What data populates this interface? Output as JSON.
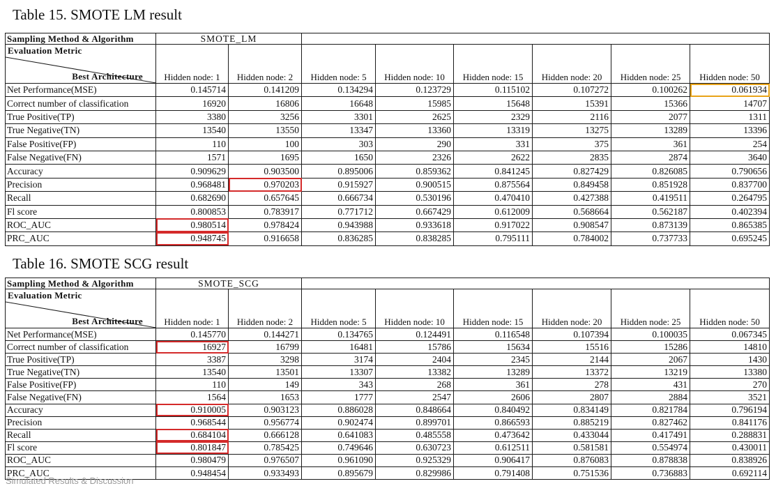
{
  "tables": [
    {
      "caption": "Table 15. SMOTE LM result",
      "sampling_label": "Sampling Method & Algorithm",
      "algorithm": "SMOTE_LM",
      "metric_label": "Evaluation Metric",
      "architecture_label": "Best Architecture",
      "columns": [
        "Hidden node: 1",
        "Hidden node: 2",
        "Hidden node: 5",
        "Hidden node: 10",
        "Hidden node: 15",
        "Hidden node: 20",
        "Hidden node: 25",
        "Hidden node: 50"
      ],
      "rows": [
        {
          "metric": "Net Performance(MSE)",
          "values": [
            "0.145714",
            "0.141209",
            "0.134294",
            "0.123729",
            "0.115102",
            "0.107272",
            "0.100262",
            "0.061934"
          ]
        },
        {
          "metric": "Correct number of classification",
          "values": [
            "16920",
            "16806",
            "16648",
            "15985",
            "15648",
            "15391",
            "15366",
            "14707"
          ]
        },
        {
          "metric": "True Positive(TP)",
          "values": [
            "3380",
            "3256",
            "3301",
            "2625",
            "2329",
            "2116",
            "2077",
            "1311"
          ]
        },
        {
          "metric": "True Negative(TN)",
          "values": [
            "13540",
            "13550",
            "13347",
            "13360",
            "13319",
            "13275",
            "13289",
            "13396"
          ]
        },
        {
          "metric": "False Positive(FP)",
          "values": [
            "110",
            "100",
            "303",
            "290",
            "331",
            "375",
            "361",
            "254"
          ]
        },
        {
          "metric": "False Negative(FN)",
          "values": [
            "1571",
            "1695",
            "1650",
            "2326",
            "2622",
            "2835",
            "2874",
            "3640"
          ]
        },
        {
          "metric": "Accuracy",
          "values": [
            "0.909629",
            "0.903500",
            "0.895006",
            "0.859362",
            "0.841245",
            "0.827429",
            "0.826085",
            "0.790656"
          ]
        },
        {
          "metric": "Precision",
          "values": [
            "0.968481",
            "0.970203",
            "0.915927",
            "0.900515",
            "0.875564",
            "0.849458",
            "0.851928",
            "0.837700"
          ]
        },
        {
          "metric": "Recall",
          "values": [
            "0.682690",
            "0.657645",
            "0.666734",
            "0.530196",
            "0.470410",
            "0.427388",
            "0.419511",
            "0.264795"
          ]
        },
        {
          "metric": "Fl score",
          "values": [
            "0.800853",
            "0.783917",
            "0.771712",
            "0.667429",
            "0.612009",
            "0.568664",
            "0.562187",
            "0.402394"
          ]
        },
        {
          "metric": "ROC_AUC",
          "values": [
            "0.980514",
            "0.978424",
            "0.943988",
            "0.933618",
            "0.917022",
            "0.908547",
            "0.873139",
            "0.865385"
          ]
        },
        {
          "metric": "PRC_AUC",
          "values": [
            "0.948745",
            "0.916658",
            "0.836285",
            "0.838285",
            "0.795111",
            "0.784002",
            "0.737733",
            "0.695245"
          ]
        }
      ],
      "highlights_color_red": "#d42a2a",
      "highlights_color_orange": "#e8a317"
    },
    {
      "caption": "Table 16. SMOTE SCG result",
      "sampling_label": "Sampling Method & Algorithm",
      "algorithm": "SMOTE_SCG",
      "metric_label": "Evaluation Metric",
      "architecture_label": "Best Architecture",
      "columns": [
        "Hidden node: 1",
        "Hidden node: 2",
        "Hidden node: 5",
        "Hidden node: 10",
        "Hidden node: 15",
        "Hidden node: 20",
        "Hidden node: 25",
        "Hidden node: 50"
      ],
      "rows": [
        {
          "metric": "Net Performance(MSE)",
          "values": [
            "0.145770",
            "0.144271",
            "0.134765",
            "0.124491",
            "0.116548",
            "0.107394",
            "0.100035",
            "0.067345"
          ]
        },
        {
          "metric": "Correct number of classification",
          "values": [
            "16927",
            "16799",
            "16481",
            "15786",
            "15634",
            "15516",
            "15286",
            "14810"
          ]
        },
        {
          "metric": "True Positive(TP)",
          "values": [
            "3387",
            "3298",
            "3174",
            "2404",
            "2345",
            "2144",
            "2067",
            "1430"
          ]
        },
        {
          "metric": "True Negative(TN)",
          "values": [
            "13540",
            "13501",
            "13307",
            "13382",
            "13289",
            "13372",
            "13219",
            "13380"
          ]
        },
        {
          "metric": "False Positive(FP)",
          "values": [
            "110",
            "149",
            "343",
            "268",
            "361",
            "278",
            "431",
            "270"
          ]
        },
        {
          "metric": "False Negative(FN)",
          "values": [
            "1564",
            "1653",
            "1777",
            "2547",
            "2606",
            "2807",
            "2884",
            "3521"
          ]
        },
        {
          "metric": "Accuracy",
          "values": [
            "0.910005",
            "0.903123",
            "0.886028",
            "0.848664",
            "0.840492",
            "0.834149",
            "0.821784",
            "0.796194"
          ]
        },
        {
          "metric": "Precision",
          "values": [
            "0.968544",
            "0.956774",
            "0.902474",
            "0.899701",
            "0.866593",
            "0.885219",
            "0.827462",
            "0.841176"
          ]
        },
        {
          "metric": "Recall",
          "values": [
            "0.684104",
            "0.666128",
            "0.641083",
            "0.485558",
            "0.473642",
            "0.433044",
            "0.417491",
            "0.288831"
          ]
        },
        {
          "metric": "Fl score",
          "values": [
            "0.801847",
            "0.785425",
            "0.749646",
            "0.630723",
            "0.612511",
            "0.581581",
            "0.554974",
            "0.430011"
          ]
        },
        {
          "metric": "ROC_AUC",
          "values": [
            "0.980479",
            "0.976507",
            "0.961090",
            "0.925329",
            "0.906417",
            "0.876083",
            "0.878838",
            "0.838926"
          ]
        },
        {
          "metric": "PRC_AUC",
          "values": [
            "0.948454",
            "0.933493",
            "0.895679",
            "0.829986",
            "0.791408",
            "0.751536",
            "0.736883",
            "0.692114"
          ]
        }
      ]
    }
  ],
  "footer_fragment": "Simulated Results & Discussion"
}
